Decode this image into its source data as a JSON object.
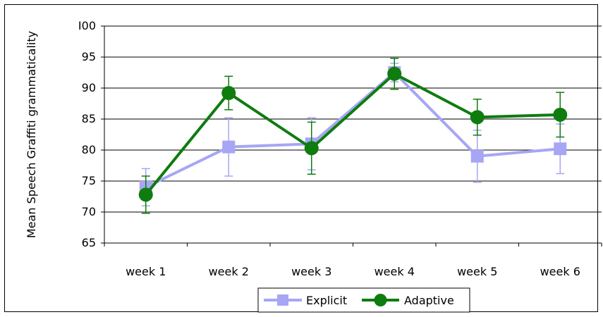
{
  "chart_data": {
    "type": "line",
    "ylabel": "Mean Speech Graffiti grammaticality",
    "xlabel": "",
    "title": "",
    "categories": [
      "week 1",
      "week 2",
      "week 3",
      "week 4",
      "week 5",
      "week 6"
    ],
    "ylim": [
      65,
      100
    ],
    "yticks": [
      65,
      70,
      75,
      80,
      85,
      90,
      95,
      100
    ],
    "ytick_labels": [
      "65",
      "70",
      "75",
      "80",
      "85",
      "90",
      "95",
      "I00"
    ],
    "grid": "horizontal",
    "legend_position": "bottom",
    "series": [
      {
        "name": "Explicit",
        "color": "#A6A6F5",
        "marker": "square",
        "values": [
          74.0,
          80.5,
          81.0,
          92.5,
          79.0,
          80.2
        ],
        "error": [
          3.0,
          4.7,
          4.2,
          1.5,
          4.2,
          4.0
        ]
      },
      {
        "name": "Adaptive",
        "color": "#0E7C0E",
        "marker": "circle",
        "values": [
          72.8,
          89.2,
          80.3,
          92.3,
          85.3,
          85.7
        ],
        "error": [
          3.0,
          2.7,
          4.2,
          2.5,
          2.9,
          3.6
        ]
      }
    ]
  }
}
